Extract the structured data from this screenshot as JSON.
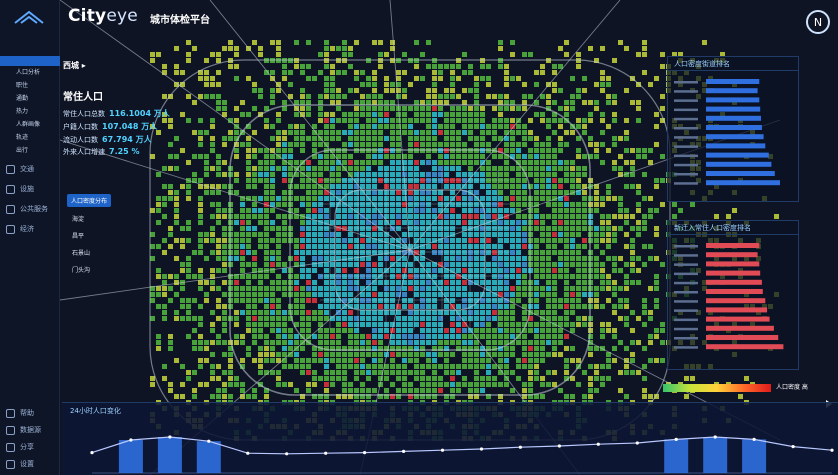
{
  "header": {
    "brand_bold": "City",
    "brand_thin": "eye",
    "brand_sub": "城市体检平台",
    "compass_label": "N"
  },
  "sidebar": {
    "items": [
      {
        "label": "",
        "active": true,
        "sub": false
      },
      {
        "label": "人口分析",
        "active": false,
        "sub": true
      },
      {
        "label": "职住",
        "active": false,
        "sub": true
      },
      {
        "label": "通勤",
        "active": false,
        "sub": true
      },
      {
        "label": "热力",
        "active": false,
        "sub": true
      },
      {
        "label": "人群画像",
        "active": false,
        "sub": true
      },
      {
        "label": "轨迹",
        "active": false,
        "sub": true
      },
      {
        "label": "出行",
        "active": false,
        "sub": true
      }
    ],
    "sections": [
      {
        "label": "交通",
        "icon": "car-icon"
      },
      {
        "label": "设施",
        "icon": "building-icon"
      },
      {
        "label": "公共服务",
        "icon": "service-icon"
      },
      {
        "label": "经济",
        "icon": "chart-icon"
      }
    ],
    "bottom": [
      {
        "label": "帮助",
        "icon": "help-icon"
      },
      {
        "label": "数据源",
        "icon": "database-icon"
      },
      {
        "label": "分享",
        "icon": "share-icon"
      },
      {
        "label": "设置",
        "icon": "gear-icon"
      }
    ]
  },
  "stats": {
    "district": "西城",
    "title": "常住人口",
    "title_sub": "",
    "rows": [
      {
        "label": "常住人口总数",
        "value": "116.1004 万人"
      },
      {
        "label": "户籍人口数",
        "value": "107.048 万人"
      },
      {
        "label": "流动人口数",
        "value": "67.794 万人"
      },
      {
        "label": "外来人口增速",
        "value": "7.25 %"
      }
    ],
    "tag": "人口密度分布",
    "map_labels": [
      "海淀",
      "昌平",
      "石景山",
      "门头沟"
    ]
  },
  "panels": {
    "top": {
      "title": "人口密度街道排名",
      "color": "#2f6fe0",
      "bars": [
        {
          "label": "",
          "value": 0.62
        },
        {
          "label": "",
          "value": 0.6
        },
        {
          "label": "",
          "value": 0.62
        },
        {
          "label": "",
          "value": 0.63
        },
        {
          "label": "",
          "value": 0.64
        },
        {
          "label": "",
          "value": 0.65
        },
        {
          "label": "",
          "value": 0.67
        },
        {
          "label": "",
          "value": 0.69
        },
        {
          "label": "",
          "value": 0.73
        },
        {
          "label": "",
          "value": 0.76
        },
        {
          "label": "",
          "value": 0.8
        },
        {
          "label": "",
          "value": 0.86
        }
      ]
    },
    "bottom": {
      "title": "新迁入常住人口密度排名",
      "color": "#e04b55",
      "bars": [
        {
          "label": "",
          "value": 0.62
        },
        {
          "label": "",
          "value": 0.6
        },
        {
          "label": "",
          "value": 0.62
        },
        {
          "label": "",
          "value": 0.63
        },
        {
          "label": "",
          "value": 0.65
        },
        {
          "label": "",
          "value": 0.66
        },
        {
          "label": "",
          "value": 0.69
        },
        {
          "label": "",
          "value": 0.71
        },
        {
          "label": "",
          "value": 0.74
        },
        {
          "label": "",
          "value": 0.79
        },
        {
          "label": "",
          "value": 0.84
        },
        {
          "label": "",
          "value": 0.9
        }
      ]
    }
  },
  "legend": {
    "label": "人口密度 高"
  },
  "timeline": {
    "title": "24小时人口变化",
    "bar_color": "#2f6fe0",
    "line_color": "#b9c8ff",
    "values": [
      0.34,
      0.55,
      0.6,
      0.53,
      0.33,
      0.32,
      0.33,
      0.34,
      0.36,
      0.38,
      0.4,
      0.43,
      0.45,
      0.48,
      0.5,
      0.56,
      0.6,
      0.56,
      0.44,
      0.38
    ],
    "highlighted": [
      1,
      2,
      3,
      15,
      16,
      17
    ]
  },
  "colors": {
    "density_high": "#2ab7c4",
    "density_mid": "#4caf3c",
    "density_low": "#b7c93a",
    "hotspot": "#d6313b",
    "accent": "#1d63c8"
  }
}
